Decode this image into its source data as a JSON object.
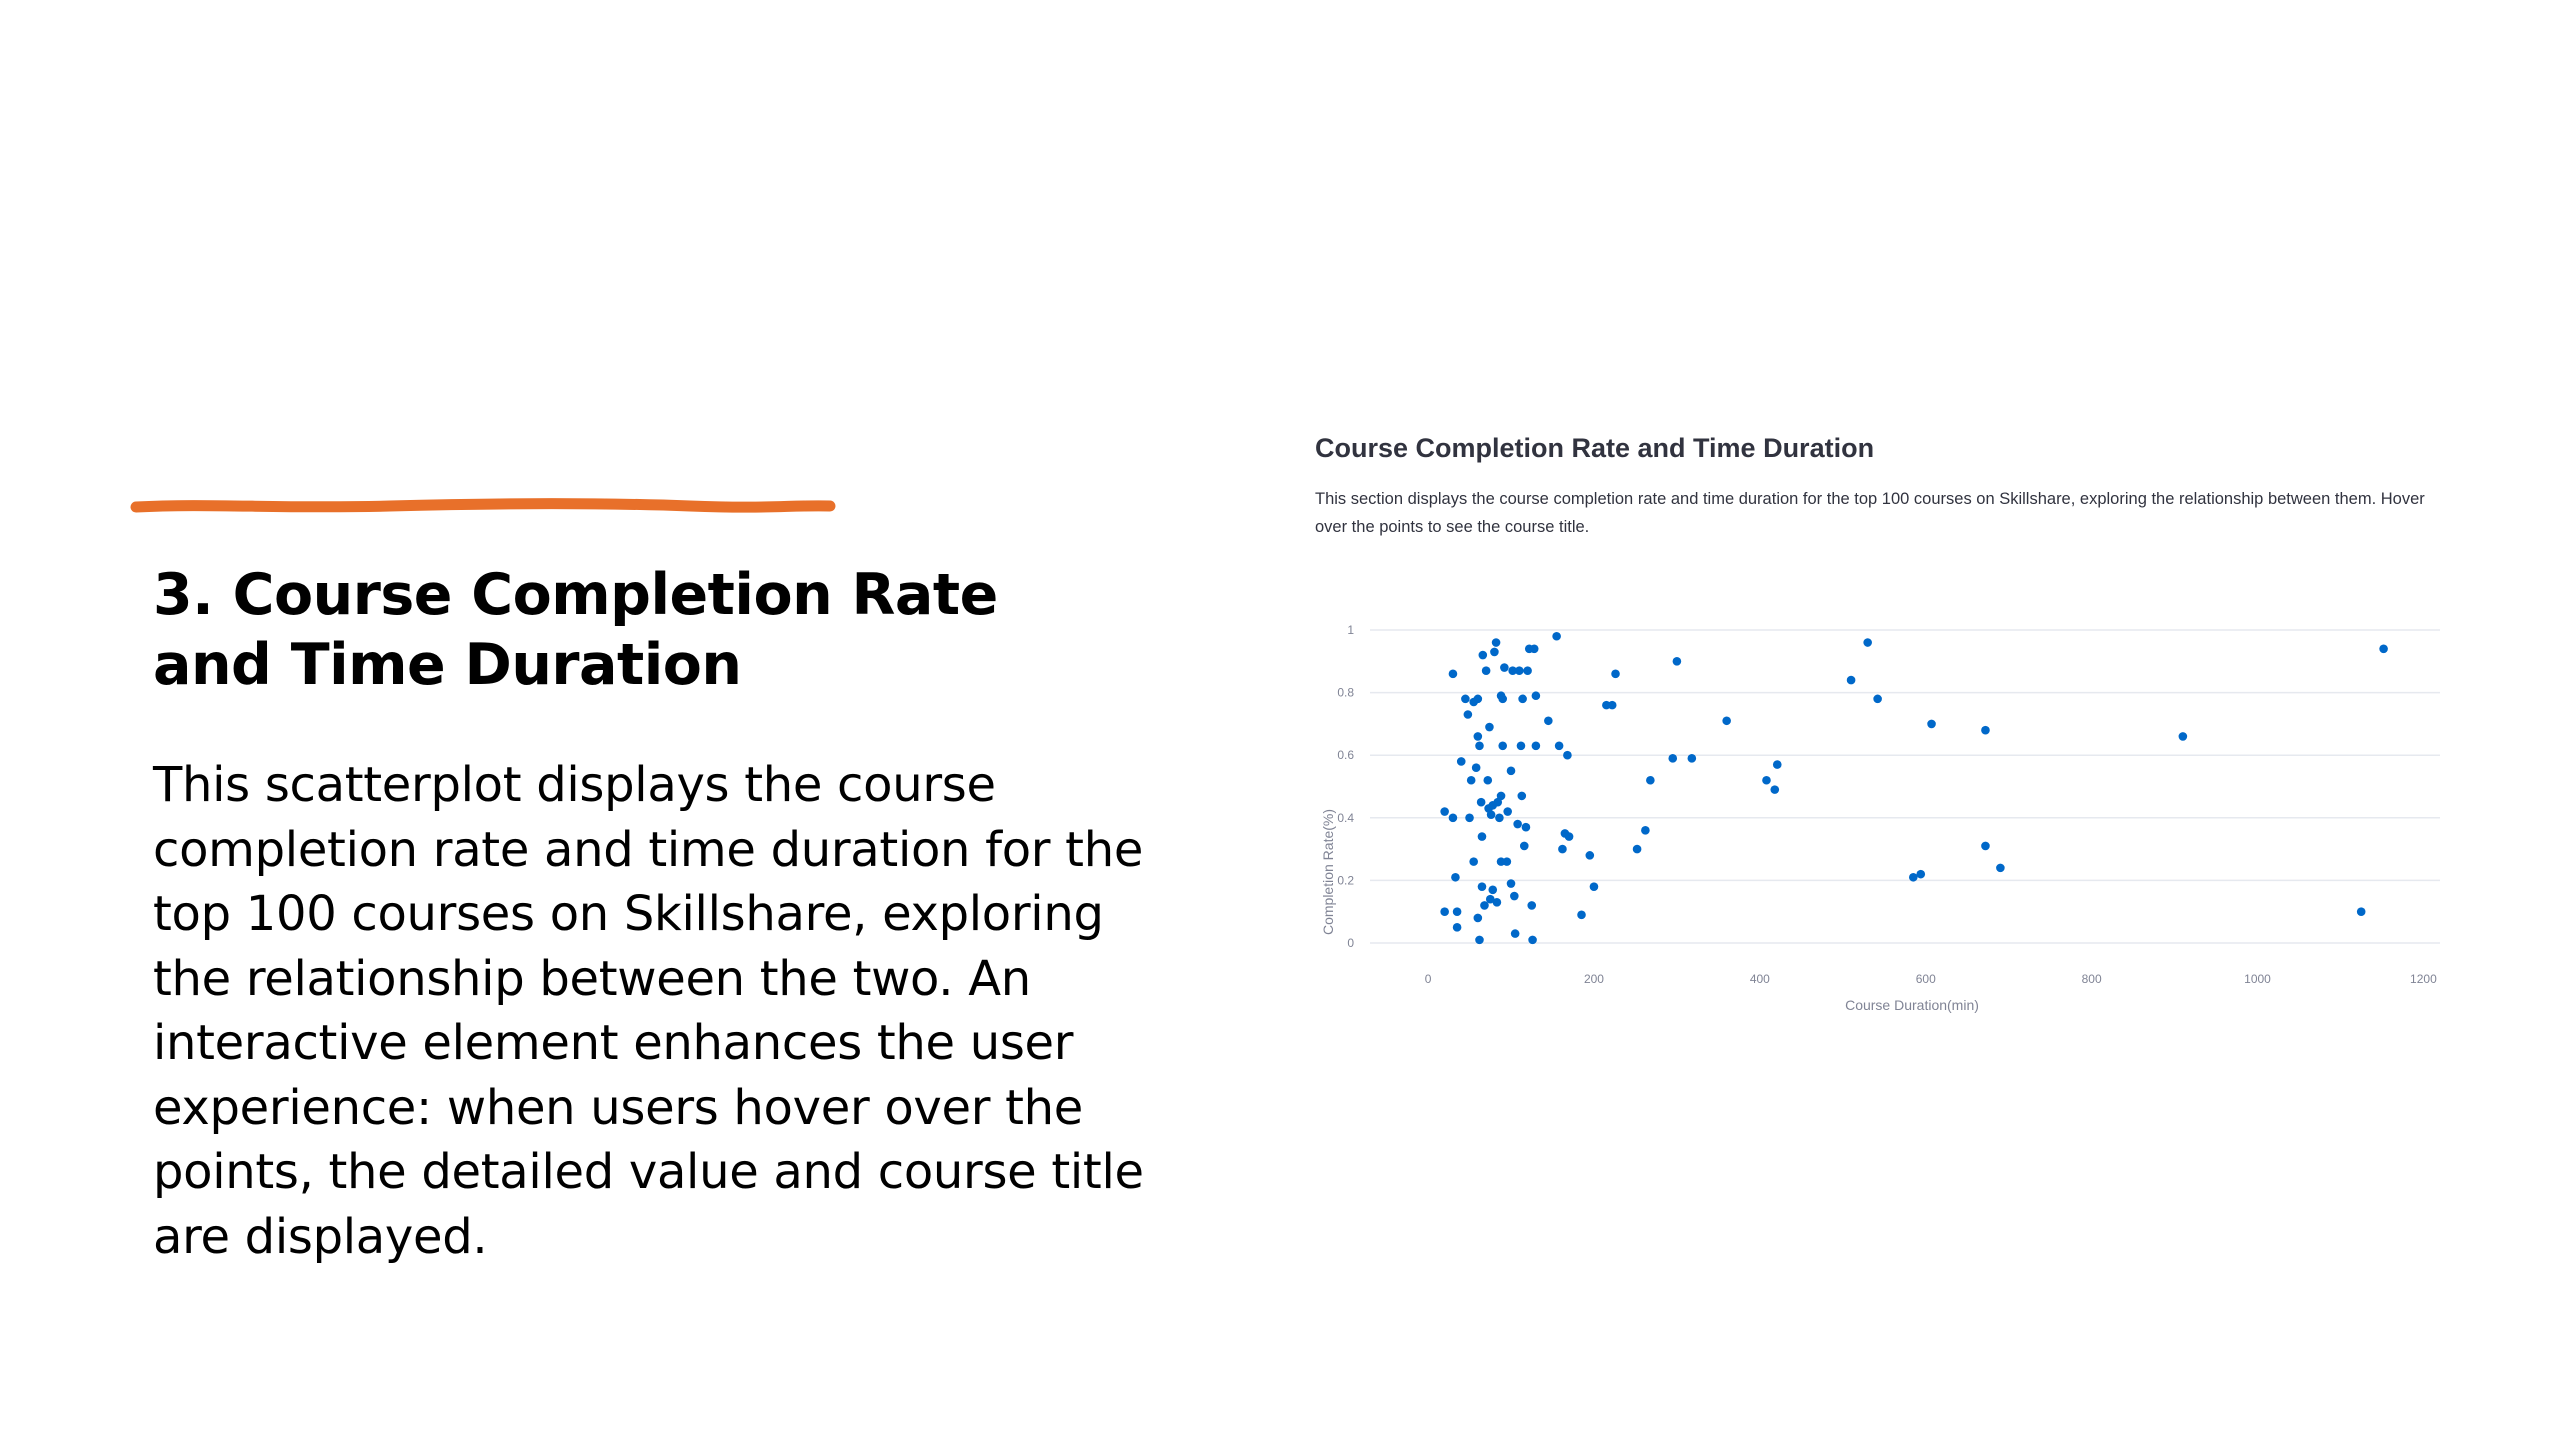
{
  "slide": {
    "heading": "3. Course Completion Rate and Time Duration",
    "body": "This scatterplot displays the course completion rate and time duration for the top 100 courses on Skillshare, exploring the relationship between the two. An interactive element enhances the user experience: when users hover over the points, the detailed value and course title are displayed.",
    "accent_color": "#e8702a"
  },
  "panel": {
    "title": "Course Completion Rate and Time Duration",
    "description": "This section displays the course completion rate and time duration for the top 100 courses on Skillshare, exploring the relationship between them. Hover over the points to see the course title."
  },
  "chart_data": {
    "type": "scatter",
    "xlabel": "Course Duration(min)",
    "ylabel": "Completion Rate(%)",
    "xlim": [
      -70,
      1220
    ],
    "ylim": [
      0,
      1
    ],
    "x_ticks": [
      0,
      200,
      400,
      600,
      800,
      1000,
      1200
    ],
    "y_ticks": [
      0,
      0.2,
      0.4,
      0.6,
      0.8,
      1
    ],
    "x_tick_labels": [
      "0",
      "200",
      "400",
      "600",
      "800",
      "1000",
      "1200"
    ],
    "y_tick_labels": [
      "0",
      "0.2",
      "0.4",
      "0.6",
      "0.8",
      "1"
    ],
    "grid": "horizontal",
    "marker_color": "#0068c9",
    "series": [
      {
        "points": [
          [
            20,
            0.42
          ],
          [
            20,
            0.1
          ],
          [
            30,
            0.86
          ],
          [
            30,
            0.4
          ],
          [
            33,
            0.21
          ],
          [
            35,
            0.05
          ],
          [
            35,
            0.1
          ],
          [
            40,
            0.58
          ],
          [
            45,
            0.78
          ],
          [
            48,
            0.73
          ],
          [
            50,
            0.4
          ],
          [
            52,
            0.52
          ],
          [
            55,
            0.77
          ],
          [
            55,
            0.26
          ],
          [
            58,
            0.56
          ],
          [
            60,
            0.78
          ],
          [
            60,
            0.66
          ],
          [
            60,
            0.08
          ],
          [
            62,
            0.63
          ],
          [
            62,
            0.01
          ],
          [
            64,
            0.45
          ],
          [
            65,
            0.34
          ],
          [
            65,
            0.18
          ],
          [
            66,
            0.92
          ],
          [
            68,
            0.12
          ],
          [
            70,
            0.87
          ],
          [
            72,
            0.52
          ],
          [
            73,
            0.43
          ],
          [
            74,
            0.69
          ],
          [
            75,
            0.14
          ],
          [
            76,
            0.41
          ],
          [
            78,
            0.44
          ],
          [
            78,
            0.17
          ],
          [
            80,
            0.93
          ],
          [
            82,
            0.96
          ],
          [
            83,
            0.13
          ],
          [
            84,
            0.45
          ],
          [
            86,
            0.4
          ],
          [
            88,
            0.79
          ],
          [
            88,
            0.47
          ],
          [
            88,
            0.26
          ],
          [
            90,
            0.78
          ],
          [
            90,
            0.63
          ],
          [
            92,
            0.88
          ],
          [
            95,
            0.26
          ],
          [
            96,
            0.42
          ],
          [
            100,
            0.55
          ],
          [
            100,
            0.19
          ],
          [
            102,
            0.87
          ],
          [
            104,
            0.15
          ],
          [
            105,
            0.03
          ],
          [
            108,
            0.38
          ],
          [
            110,
            0.87
          ],
          [
            112,
            0.63
          ],
          [
            113,
            0.47
          ],
          [
            114,
            0.78
          ],
          [
            116,
            0.31
          ],
          [
            118,
            0.37
          ],
          [
            120,
            0.87
          ],
          [
            122,
            0.94
          ],
          [
            125,
            0.12
          ],
          [
            126,
            0.01
          ],
          [
            128,
            0.94
          ],
          [
            130,
            0.63
          ],
          [
            130,
            0.79
          ],
          [
            145,
            0.71
          ],
          [
            155,
            0.98
          ],
          [
            158,
            0.63
          ],
          [
            162,
            0.3
          ],
          [
            165,
            0.35
          ],
          [
            168,
            0.6
          ],
          [
            170,
            0.34
          ],
          [
            185,
            0.09
          ],
          [
            195,
            0.28
          ],
          [
            200,
            0.18
          ],
          [
            215,
            0.76
          ],
          [
            222,
            0.76
          ],
          [
            226,
            0.86
          ],
          [
            252,
            0.3
          ],
          [
            262,
            0.36
          ],
          [
            268,
            0.52
          ],
          [
            295,
            0.59
          ],
          [
            300,
            0.9
          ],
          [
            318,
            0.59
          ],
          [
            360,
            0.71
          ],
          [
            408,
            0.52
          ],
          [
            418,
            0.49
          ],
          [
            421,
            0.57
          ],
          [
            510,
            0.84
          ],
          [
            530,
            0.96
          ],
          [
            542,
            0.78
          ],
          [
            585,
            0.21
          ],
          [
            594,
            0.22
          ],
          [
            607,
            0.7
          ],
          [
            672,
            0.68
          ],
          [
            672,
            0.31
          ],
          [
            690,
            0.24
          ],
          [
            910,
            0.66
          ],
          [
            1125,
            0.1
          ],
          [
            1152,
            0.94
          ]
        ]
      }
    ]
  }
}
